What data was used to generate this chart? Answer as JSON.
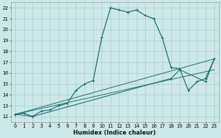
{
  "xlabel": "Humidex (Indice chaleur)",
  "xlim": [
    -0.5,
    23.5
  ],
  "ylim": [
    11.5,
    22.5
  ],
  "xticks": [
    0,
    1,
    2,
    3,
    4,
    5,
    6,
    7,
    8,
    9,
    10,
    11,
    12,
    13,
    14,
    15,
    16,
    17,
    18,
    19,
    20,
    21,
    22,
    23
  ],
  "yticks": [
    12,
    13,
    14,
    15,
    16,
    17,
    18,
    19,
    20,
    21,
    22
  ],
  "bg_color": "#cce8e8",
  "grid_color": "#aacccc",
  "line_color": "#1a6e6e",
  "line1": {
    "x": [
      0,
      1,
      2,
      3,
      4,
      5,
      6,
      7,
      8,
      9,
      10,
      11,
      12,
      13,
      14,
      15,
      16,
      17,
      18,
      19,
      20,
      21,
      22,
      23
    ],
    "y": [
      12.2,
      12.3,
      12.0,
      12.5,
      12.6,
      13.0,
      13.2,
      14.4,
      15.0,
      15.3,
      19.3,
      22.0,
      21.8,
      21.6,
      21.8,
      21.3,
      21.0,
      19.2,
      16.5,
      16.4,
      14.4,
      15.2,
      15.5,
      17.3
    ]
  },
  "line2": {
    "x": [
      0,
      2,
      18,
      19,
      22,
      23
    ],
    "y": [
      12.2,
      12.0,
      15.5,
      16.3,
      15.2,
      17.3
    ]
  },
  "line3": {
    "x": [
      0,
      23
    ],
    "y": [
      12.2,
      16.3
    ]
  },
  "line4": {
    "x": [
      0,
      23
    ],
    "y": [
      12.2,
      17.3
    ]
  }
}
